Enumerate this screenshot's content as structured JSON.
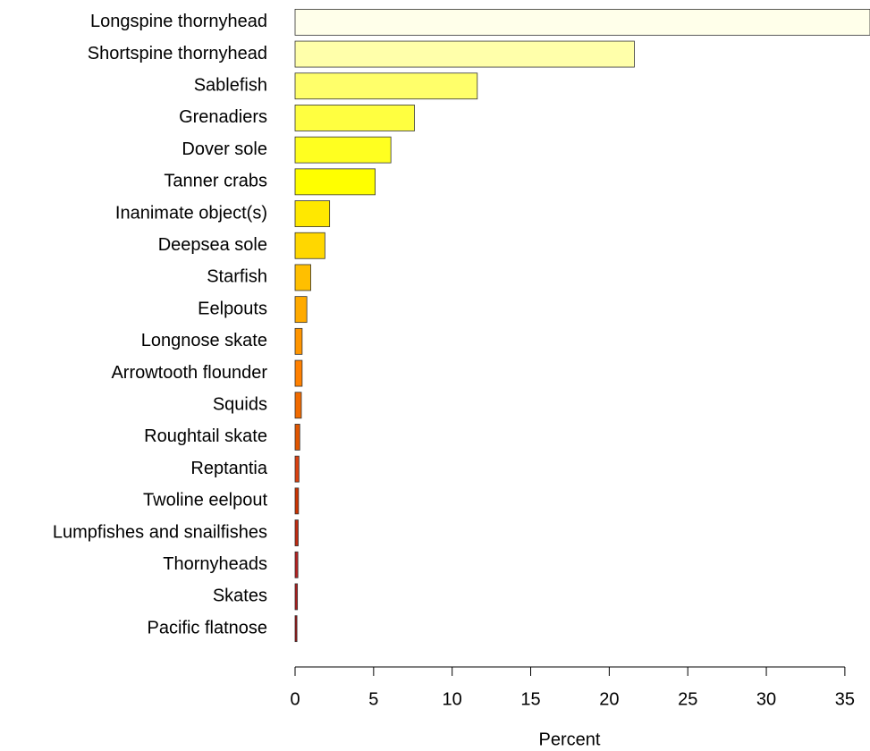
{
  "chart_data": {
    "type": "barh",
    "x_label": "Percent",
    "categories": [
      "Longspine thornyhead",
      "Shortspine thornyhead",
      "Sablefish",
      "Grenadiers",
      "Dover sole",
      "Tanner crabs",
      "Inanimate object(s)",
      "Deepsea sole",
      "Starfish",
      "Eelpouts",
      "Longnose skate",
      "Arrowtooth flounder",
      "Squids",
      "Roughtail skate",
      "Reptantia",
      "Twoline eelpout",
      "Lumpfishes and snailfishes",
      "Thornyheads",
      "Skates",
      "Pacific flatnose"
    ],
    "values": [
      36.6,
      21.6,
      11.6,
      7.6,
      6.1,
      5.1,
      2.2,
      1.9,
      1.0,
      0.75,
      0.45,
      0.45,
      0.4,
      0.3,
      0.25,
      0.22,
      0.2,
      0.18,
      0.15,
      0.12
    ],
    "colors": [
      "#FFFFEA",
      "#FFFFAA",
      "#FFFF6A",
      "#FFFF40",
      "#FFFF20",
      "#FFFF00",
      "#FFE800",
      "#FFD700",
      "#FFBF00",
      "#FFAA00",
      "#FF9500",
      "#FF8000",
      "#F06A00",
      "#E05500",
      "#D84010",
      "#CC3300",
      "#C02A10",
      "#B82020",
      "#B01C1C",
      "#A01010"
    ],
    "xlim": [
      0,
      36.6
    ],
    "xticks": [
      0,
      5,
      10,
      15,
      20,
      25,
      30,
      35
    ]
  }
}
